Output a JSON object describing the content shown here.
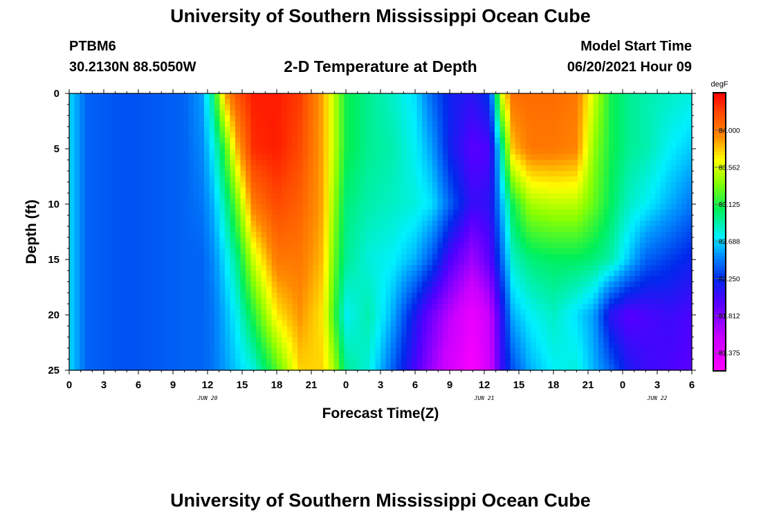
{
  "header": {
    "title": "University of Southern Mississippi Ocean Cube",
    "station_id": "PTBM6",
    "station_coords": "30.2130N  88.5050W",
    "chart_title": "2-D Temperature at Depth",
    "model_start_label": "Model Start Time",
    "model_start_time": "06/20/2021 Hour 09"
  },
  "footer": {
    "title": "University of Southern Mississippi Ocean Cube"
  },
  "chart_data": {
    "type": "heatmap",
    "title": "2-D Temperature at Depth",
    "xlabel": "Forecast Time(Z)",
    "ylabel": "Depth (ft)",
    "x_start": "06/20/2021 00Z",
    "xlim": [
      0,
      54
    ],
    "ylim": [
      0,
      25
    ],
    "y_reversed": true,
    "x_tick_labels": [
      "0",
      "3",
      "6",
      "9",
      "12",
      "15",
      "18",
      "21",
      "0",
      "3",
      "6",
      "9",
      "12",
      "15",
      "18",
      "21",
      "0",
      "3",
      "6"
    ],
    "y_tick_labels": [
      "0",
      "5",
      "10",
      "15",
      "20",
      "25"
    ],
    "date_labels": [
      {
        "text": "JUN 20",
        "hour": 12
      },
      {
        "text": "JUN 21",
        "hour": 36
      },
      {
        "text": "JUN 22",
        "hour": 51
      }
    ],
    "colorbar": {
      "unit": "degF",
      "min": 81.16,
      "max": 84.44,
      "ticks": [
        "84.000",
        "83.562",
        "83.125",
        "82.688",
        "82.250",
        "81.812",
        "81.375"
      ],
      "tick_values": [
        84.0,
        83.562,
        83.125,
        82.688,
        82.25,
        81.812,
        81.375
      ]
    },
    "depth_levels": [
      0,
      5,
      10,
      15,
      20,
      25
    ],
    "columns": [
      {
        "hour": 0,
        "values": [
          82.7,
          82.7,
          82.7,
          82.7,
          82.7,
          82.7
        ]
      },
      {
        "hour": 1.5,
        "values": [
          82.4,
          82.4,
          82.4,
          82.4,
          82.4,
          82.4
        ]
      },
      {
        "hour": 5,
        "values": [
          82.35,
          82.35,
          82.35,
          82.35,
          82.35,
          82.35
        ]
      },
      {
        "hour": 10,
        "values": [
          82.4,
          82.4,
          82.4,
          82.4,
          82.4,
          82.4
        ]
      },
      {
        "hour": 11.5,
        "values": [
          82.55,
          82.5,
          82.45,
          82.4,
          82.4,
          82.4
        ]
      },
      {
        "hour": 12.5,
        "values": [
          83.0,
          82.75,
          82.6,
          82.5,
          82.45,
          82.45
        ]
      },
      {
        "hour": 13.5,
        "values": [
          83.85,
          83.2,
          82.9,
          82.7,
          82.6,
          82.55
        ]
      },
      {
        "hour": 14.5,
        "values": [
          84.15,
          83.8,
          83.3,
          82.95,
          82.75,
          82.65
        ]
      },
      {
        "hour": 16,
        "values": [
          84.35,
          84.3,
          84.0,
          83.55,
          83.15,
          82.8
        ]
      },
      {
        "hour": 18,
        "values": [
          84.35,
          84.35,
          84.2,
          84.0,
          83.7,
          83.25
        ]
      },
      {
        "hour": 20,
        "values": [
          84.25,
          84.2,
          84.1,
          84.0,
          83.9,
          83.75
        ]
      },
      {
        "hour": 22,
        "values": [
          83.85,
          83.85,
          83.85,
          83.8,
          83.7,
          83.75
        ]
      },
      {
        "hour": 23,
        "values": [
          83.5,
          83.5,
          83.4,
          83.3,
          83.2,
          83.45
        ]
      },
      {
        "hour": 24,
        "values": [
          83.1,
          83.1,
          83.0,
          82.95,
          82.75,
          82.95
        ]
      },
      {
        "hour": 26,
        "values": [
          82.95,
          82.95,
          82.9,
          82.8,
          82.9,
          82.8
        ]
      },
      {
        "hour": 28,
        "values": [
          82.85,
          82.9,
          82.85,
          82.75,
          82.6,
          82.4
        ]
      },
      {
        "hour": 30,
        "values": [
          82.7,
          82.75,
          82.8,
          82.6,
          82.15,
          82.0
        ]
      },
      {
        "hour": 31.5,
        "values": [
          82.4,
          82.55,
          82.7,
          82.35,
          81.85,
          81.7
        ]
      },
      {
        "hour": 33,
        "values": [
          82.2,
          82.2,
          82.4,
          82.0,
          81.6,
          81.45
        ]
      },
      {
        "hour": 35,
        "values": [
          82.1,
          81.95,
          82.05,
          81.7,
          81.3,
          81.2
        ]
      },
      {
        "hour": 36.5,
        "values": [
          82.3,
          82.0,
          82.1,
          81.95,
          81.55,
          81.5
        ]
      },
      {
        "hour": 37.5,
        "values": [
          83.6,
          82.9,
          82.6,
          82.4,
          82.1,
          82.05
        ]
      },
      {
        "hour": 38.5,
        "values": [
          84.05,
          83.8,
          83.1,
          82.85,
          82.6,
          82.35
        ]
      },
      {
        "hour": 40,
        "values": [
          84.05,
          84.0,
          83.45,
          83.0,
          82.75,
          82.6
        ]
      },
      {
        "hour": 42,
        "values": [
          84.05,
          84.0,
          83.5,
          83.05,
          82.85,
          82.75
        ]
      },
      {
        "hour": 44,
        "values": [
          84.0,
          83.95,
          83.5,
          83.05,
          82.7,
          82.8
        ]
      },
      {
        "hour": 45.5,
        "values": [
          83.55,
          83.4,
          83.3,
          83.0,
          82.55,
          82.6
        ]
      },
      {
        "hour": 47,
        "values": [
          83.1,
          83.1,
          83.05,
          82.9,
          82.1,
          82.4
        ]
      },
      {
        "hour": 48.5,
        "values": [
          82.95,
          82.95,
          82.85,
          82.65,
          81.95,
          82.15
        ]
      },
      {
        "hour": 50,
        "values": [
          82.9,
          82.9,
          82.75,
          82.4,
          82.0,
          82.05
        ]
      },
      {
        "hour": 52,
        "values": [
          82.85,
          82.75,
          82.6,
          82.3,
          82.05,
          82.0
        ]
      },
      {
        "hour": 54,
        "values": [
          82.8,
          82.65,
          82.45,
          82.2,
          82.0,
          81.95
        ]
      }
    ]
  }
}
